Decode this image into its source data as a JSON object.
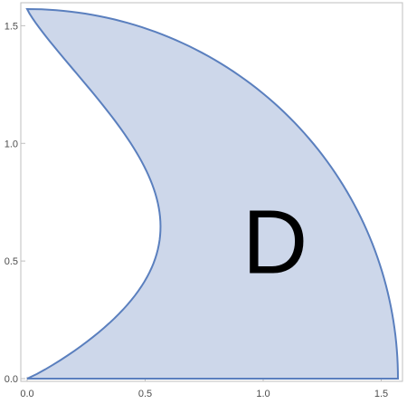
{
  "chart_data": {
    "type": "area",
    "title": "",
    "xlabel": "",
    "ylabel": "",
    "xlim": [
      -0.03,
      1.62
    ],
    "ylim": [
      -0.03,
      1.6
    ],
    "x_ticks": [
      {
        "value": 0.0,
        "label": "0.0"
      },
      {
        "value": 0.5,
        "label": "0.5"
      },
      {
        "value": 1.0,
        "label": "1.0"
      },
      {
        "value": 1.5,
        "label": "1.5"
      }
    ],
    "y_ticks": [
      {
        "value": 0.0,
        "label": "0.0"
      },
      {
        "value": 0.5,
        "label": "0.5"
      },
      {
        "value": 1.0,
        "label": "1.0"
      },
      {
        "value": 1.5,
        "label": "1.5"
      }
    ],
    "region": {
      "label": "D",
      "label_position": {
        "x": 1.05,
        "y": 0.55
      },
      "outer_boundary": "quarter circle r = pi/2 from (0, 1.5708) to (1.5708, 0)",
      "inner_boundary": "x = sin(y) * sin(y) ... left curve from (0,0) bulging to x≈0.56 at y≈0.67 and back to (0, 1.5708)",
      "radius": 1.5708
    },
    "fill_color": "#cdd7ea",
    "stroke_color": "#5a7fbe",
    "frame_color": "#bfbfbf",
    "grid": false
  }
}
